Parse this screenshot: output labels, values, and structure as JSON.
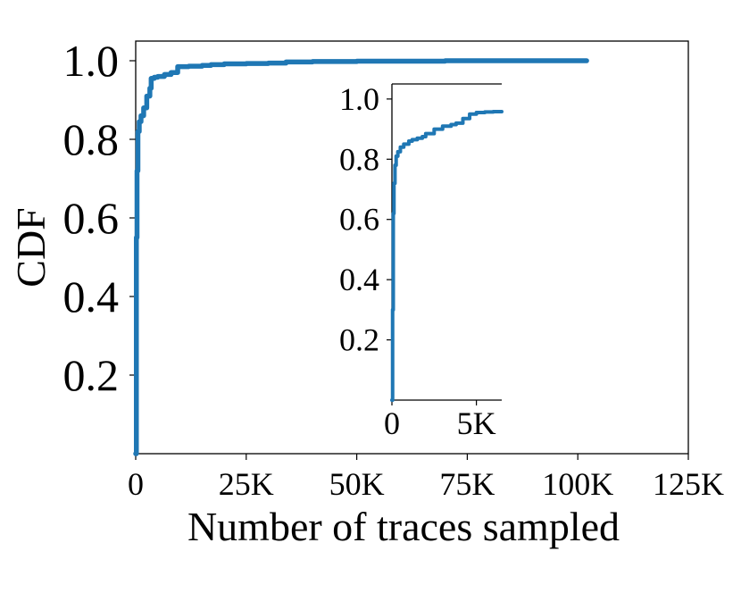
{
  "chart_data": [
    {
      "type": "line",
      "role": "main",
      "title": "",
      "xlabel": "Number of traces sampled",
      "ylabel": "CDF",
      "xlim": [
        0,
        125000
      ],
      "ylim": [
        0,
        1.05
      ],
      "xticks": [
        0,
        25000,
        50000,
        75000,
        100000,
        125000
      ],
      "xtick_labels": [
        "0",
        "25K",
        "50K",
        "75K",
        "100K",
        "125K"
      ],
      "yticks": [
        0.2,
        0.4,
        0.6,
        0.8,
        1.0
      ],
      "ytick_labels": [
        "0.2",
        "0.4",
        "0.6",
        "0.8",
        "1.0"
      ],
      "grid": false,
      "color": "#1f77b4",
      "series": [
        {
          "x": [
            0,
            150,
            300,
            500,
            800,
            1200,
            1800,
            2500,
            3200,
            3500,
            4200,
            5000,
            6500,
            8000,
            9500,
            12000,
            15000,
            17000,
            20000,
            25000,
            30000,
            34000,
            40000,
            50000,
            60000,
            70000,
            80000,
            90000,
            100000,
            102000
          ],
          "y": [
            0.0,
            0.55,
            0.72,
            0.82,
            0.845,
            0.86,
            0.88,
            0.91,
            0.93,
            0.955,
            0.958,
            0.96,
            0.965,
            0.97,
            0.985,
            0.986,
            0.988,
            0.99,
            0.992,
            0.993,
            0.994,
            0.997,
            0.998,
            0.999,
            0.999,
            1.0,
            1.0,
            1.0,
            1.0,
            1.0
          ]
        }
      ]
    },
    {
      "type": "line",
      "role": "inset",
      "title": "",
      "xlabel": "",
      "ylabel": "",
      "xlim": [
        0,
        6500
      ],
      "ylim": [
        0,
        1.05
      ],
      "xticks": [
        0,
        5000
      ],
      "xtick_labels": [
        "0",
        "5K"
      ],
      "yticks": [
        0.2,
        0.4,
        0.6,
        0.8,
        1.0
      ],
      "ytick_labels": [
        "0.2",
        "0.4",
        "0.6",
        "0.8",
        "1.0"
      ],
      "grid": false,
      "color": "#1f77b4",
      "series": [
        {
          "x": [
            0,
            40,
            80,
            120,
            180,
            250,
            350,
            500,
            700,
            1000,
            1200,
            1500,
            1800,
            2000,
            2500,
            3000,
            3500,
            3800,
            4200,
            4600,
            5000,
            5500,
            6000,
            6500
          ],
          "y": [
            0.0,
            0.3,
            0.62,
            0.72,
            0.78,
            0.81,
            0.825,
            0.84,
            0.85,
            0.86,
            0.865,
            0.87,
            0.875,
            0.885,
            0.9,
            0.91,
            0.915,
            0.92,
            0.935,
            0.95,
            0.955,
            0.957,
            0.958,
            0.958
          ]
        }
      ]
    }
  ]
}
